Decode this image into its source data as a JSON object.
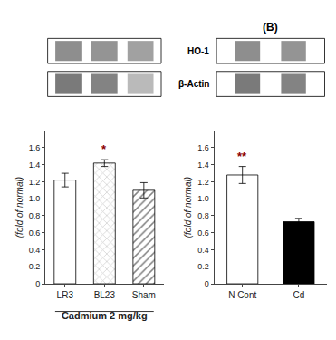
{
  "chart_data": [
    {
      "type": "bar",
      "categories": [
        "LR3",
        "BL23",
        "Sham"
      ],
      "values": [
        1.22,
        1.42,
        1.1
      ],
      "errors": [
        0.08,
        0.04,
        0.09
      ],
      "colors": [
        "white",
        "lightgray",
        "gray"
      ],
      "xlabel": "Cadmium 2 mg/kg",
      "ylabel": "(fold of normal)",
      "ylim": [
        0,
        1.8
      ],
      "yticks": [
        0,
        0.2,
        0.4,
        0.6,
        0.8,
        {
          "value": 1.0,
          "label": "1.0"
        },
        1.2,
        1.4,
        1.6
      ],
      "annotations": [
        {
          "text": "*",
          "category": "BL23",
          "color": "#8B0000"
        }
      ],
      "grid": false
    },
    {
      "type": "bar",
      "title": "(B)",
      "categories": [
        "N Cont",
        "Cd"
      ],
      "values": [
        1.28,
        0.73
      ],
      "errors": [
        0.1,
        0.04
      ],
      "colors": [
        "white",
        "black"
      ],
      "ylabel": "(fold of normal)",
      "ylim": [
        0,
        1.8
      ],
      "yticks": [
        0,
        0.2,
        0.4,
        0.6,
        0.8,
        {
          "value": 1.0,
          "label": "1.0"
        },
        1.2,
        1.4,
        1.6
      ],
      "annotations": [
        {
          "text": "**",
          "category": "N Cont",
          "color": "#8B0000"
        }
      ],
      "blot_labels": [
        "HO-1",
        "β-Actin"
      ],
      "grid": false
    }
  ]
}
